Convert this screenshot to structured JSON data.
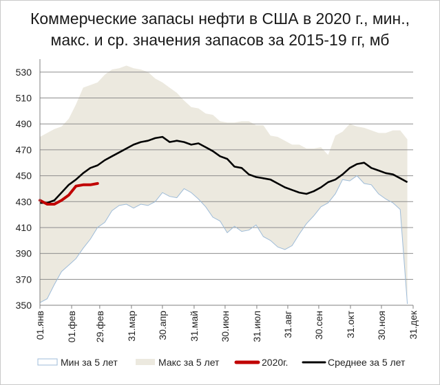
{
  "chart_data": {
    "type": "area",
    "title_line1": "Коммерческие запасы нефти в США в 2020 г., мин.,",
    "title_line2": "макс. и ср. значения запасов за 2015-19 гг, мб",
    "xlabel": "",
    "ylabel": "",
    "ylim": [
      350,
      540
    ],
    "yticks": [
      350,
      370,
      390,
      410,
      430,
      450,
      470,
      490,
      510,
      530
    ],
    "xlim": [
      1,
      52
    ],
    "xticks": [
      {
        "week": 1,
        "label": "01.янв"
      },
      {
        "week": 5.4,
        "label": "01.фев"
      },
      {
        "week": 9.3,
        "label": "29.фев"
      },
      {
        "week": 13.7,
        "label": "31.мар"
      },
      {
        "week": 18,
        "label": "30.апр"
      },
      {
        "week": 22.4,
        "label": "31.май"
      },
      {
        "week": 26.7,
        "label": "30.июн"
      },
      {
        "week": 31.1,
        "label": "31.июл"
      },
      {
        "week": 35.4,
        "label": "31.авг"
      },
      {
        "week": 39.7,
        "label": "30.сен"
      },
      {
        "week": 44.1,
        "label": "31.окт"
      },
      {
        "week": 48.4,
        "label": "30.ноя"
      },
      {
        "week": 52.8,
        "label": "31.дек"
      }
    ],
    "grid": true,
    "legend_position": "bottom",
    "colors": {
      "band": "#ece9df",
      "min_line": "#9dbbd8",
      "series_2020": "#c00000",
      "average": "#000000",
      "grid": "#8c8c8c",
      "axis": "#7f7f7f"
    },
    "series": [
      {
        "name": "Мин за 5 лет",
        "x": [
          1,
          2,
          3,
          4,
          5,
          6,
          7,
          8,
          9,
          10,
          11,
          12,
          13,
          14,
          15,
          16,
          17,
          18,
          19,
          20,
          21,
          22,
          23,
          24,
          25,
          26,
          27,
          28,
          29,
          30,
          31,
          32,
          33,
          34,
          35,
          36,
          37,
          38,
          39,
          40,
          41,
          42,
          43,
          44,
          45,
          46,
          47,
          48,
          49,
          50,
          51,
          52
        ],
        "values": [
          352,
          355,
          366,
          376,
          381,
          386,
          394,
          401,
          410,
          414,
          423,
          427,
          428,
          425,
          428,
          427,
          430,
          437,
          434,
          433,
          440,
          437,
          432,
          426,
          418,
          415,
          406,
          411,
          407,
          408,
          412,
          403,
          400,
          395,
          393,
          396,
          405,
          413,
          419,
          426,
          429,
          436,
          447,
          446,
          450,
          444,
          443,
          436,
          432,
          429,
          424,
          351
        ]
      },
      {
        "name": "Макс за 5 лет",
        "x": [
          1,
          2,
          3,
          4,
          5,
          6,
          7,
          8,
          9,
          10,
          11,
          12,
          13,
          14,
          15,
          16,
          17,
          18,
          19,
          20,
          21,
          22,
          23,
          24,
          25,
          26,
          27,
          28,
          29,
          30,
          31,
          32,
          33,
          34,
          35,
          36,
          37,
          38,
          39,
          40,
          41,
          42,
          43,
          44,
          45,
          46,
          47,
          48,
          49,
          50,
          51,
          52
        ],
        "values": [
          480,
          483,
          486,
          488,
          494,
          505,
          518,
          520,
          522,
          528,
          532,
          533,
          535,
          533,
          532,
          530,
          525,
          522,
          518,
          514,
          508,
          503,
          502,
          498,
          497,
          492,
          491,
          491,
          492,
          492,
          489,
          489,
          481,
          480,
          477,
          474,
          474,
          471,
          471,
          472,
          466,
          481,
          484,
          490,
          488,
          487,
          485,
          483,
          483,
          485,
          485,
          478
        ]
      },
      {
        "name": "2020г.",
        "x": [
          1,
          2,
          3,
          4,
          5,
          6,
          7,
          8,
          9
        ],
        "values": [
          431,
          428,
          428,
          431,
          435,
          442,
          443,
          443,
          444
        ]
      },
      {
        "name": "Среднее за 5 лет",
        "x": [
          1,
          2,
          3,
          4,
          5,
          6,
          7,
          8,
          9,
          10,
          11,
          12,
          13,
          14,
          15,
          16,
          17,
          18,
          19,
          20,
          21,
          22,
          23,
          24,
          25,
          26,
          27,
          28,
          29,
          30,
          31,
          32,
          33,
          34,
          35,
          36,
          37,
          38,
          39,
          40,
          41,
          42,
          43,
          44,
          45,
          46,
          47,
          48,
          49,
          50,
          51,
          52
        ],
        "values": [
          429,
          429,
          431,
          437,
          443,
          447,
          452,
          456,
          458,
          462,
          465,
          468,
          471,
          474,
          476,
          477,
          479,
          480,
          476,
          477,
          476,
          474,
          475,
          472,
          469,
          465,
          463,
          457,
          456,
          451,
          449,
          448,
          447,
          444,
          441,
          439,
          437,
          436,
          438,
          441,
          445,
          447,
          451,
          456,
          459,
          460,
          456,
          454,
          452,
          451,
          448,
          445
        ]
      }
    ]
  }
}
